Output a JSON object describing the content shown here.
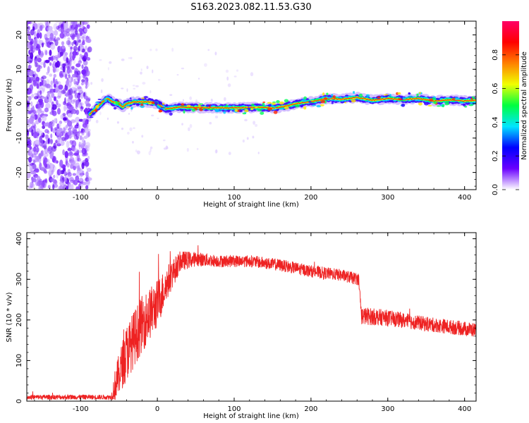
{
  "title": "S163.2023.082.11.53.G30",
  "chart_data": [
    {
      "type": "heatmap",
      "xlabel": "Height of straight line (km)",
      "ylabel": "Frequency (Hz)",
      "xlim": [
        -170,
        415
      ],
      "ylim": [
        -25,
        24
      ],
      "xticks": [
        -100,
        0,
        100,
        200,
        300,
        400
      ],
      "yticks": [
        -20,
        -10,
        0,
        10,
        20
      ],
      "xtick_labels": [
        "-100",
        "0",
        "100",
        "200",
        "300",
        "400"
      ],
      "ytick_labels": [
        "-20",
        "-10",
        "0",
        "10",
        "20"
      ],
      "colorbar": {
        "label": "Normalized spectral amplitude",
        "range": [
          0,
          1
        ],
        "ticks": [
          "0.0",
          "0.2",
          "0.4",
          "0.6",
          "0.8"
        ],
        "colors": [
          "#ffffff",
          "#6a00ff",
          "#0000ff",
          "#00e5ff",
          "#00ff40",
          "#f0ff00",
          "#ff8000",
          "#ff0000",
          "#ff0066"
        ]
      },
      "noise_region_x": [
        -170,
        -88
      ],
      "ridge": {
        "x": [
          -88,
          -80,
          -72,
          -65,
          -58,
          -50,
          -45,
          -40,
          -30,
          -20,
          -10,
          0,
          10,
          30,
          60,
          100,
          140,
          150,
          160,
          170,
          180,
          190,
          200,
          210,
          220,
          240,
          260,
          270,
          280,
          300,
          320,
          340,
          360,
          380,
          400,
          415
        ],
        "y": [
          -3,
          -1.5,
          0.5,
          1.5,
          0.5,
          0,
          -1,
          0,
          0.5,
          0.5,
          0.5,
          0,
          -1.5,
          -1,
          -1.2,
          -1.2,
          -1.1,
          -1.3,
          -1,
          -0.6,
          0,
          0.3,
          0.6,
          1,
          1.5,
          1.3,
          1.8,
          1.4,
          1,
          1.5,
          1.2,
          1.5,
          0.8,
          1.1,
          0.8,
          1.0
        ]
      }
    },
    {
      "type": "line",
      "xlabel": "Height of straight line (km)",
      "ylabel": "SNR (10 * v/v)",
      "xlim": [
        -170,
        415
      ],
      "ylim": [
        0,
        415
      ],
      "xticks": [
        -100,
        0,
        100,
        200,
        300,
        400
      ],
      "yticks": [
        0,
        100,
        200,
        300,
        400
      ],
      "xtick_labels": [
        "-100",
        "0",
        "100",
        "200",
        "300",
        "400"
      ],
      "ytick_labels": [
        "0",
        "100",
        "200",
        "300",
        "400"
      ],
      "color": "#ee2222",
      "envelope": {
        "x": [
          -170,
          -60,
          -55,
          -40,
          -20,
          0,
          15,
          30,
          50,
          80,
          120,
          160,
          200,
          240,
          262,
          266,
          300,
          350,
          415
        ],
        "mean": [
          10,
          10,
          40,
          120,
          190,
          240,
          300,
          345,
          350,
          345,
          345,
          335,
          320,
          310,
          300,
          210,
          205,
          190,
          175
        ],
        "spread": [
          6,
          6,
          40,
          70,
          70,
          60,
          40,
          25,
          18,
          15,
          15,
          15,
          15,
          15,
          15,
          22,
          20,
          18,
          18
        ]
      }
    }
  ]
}
